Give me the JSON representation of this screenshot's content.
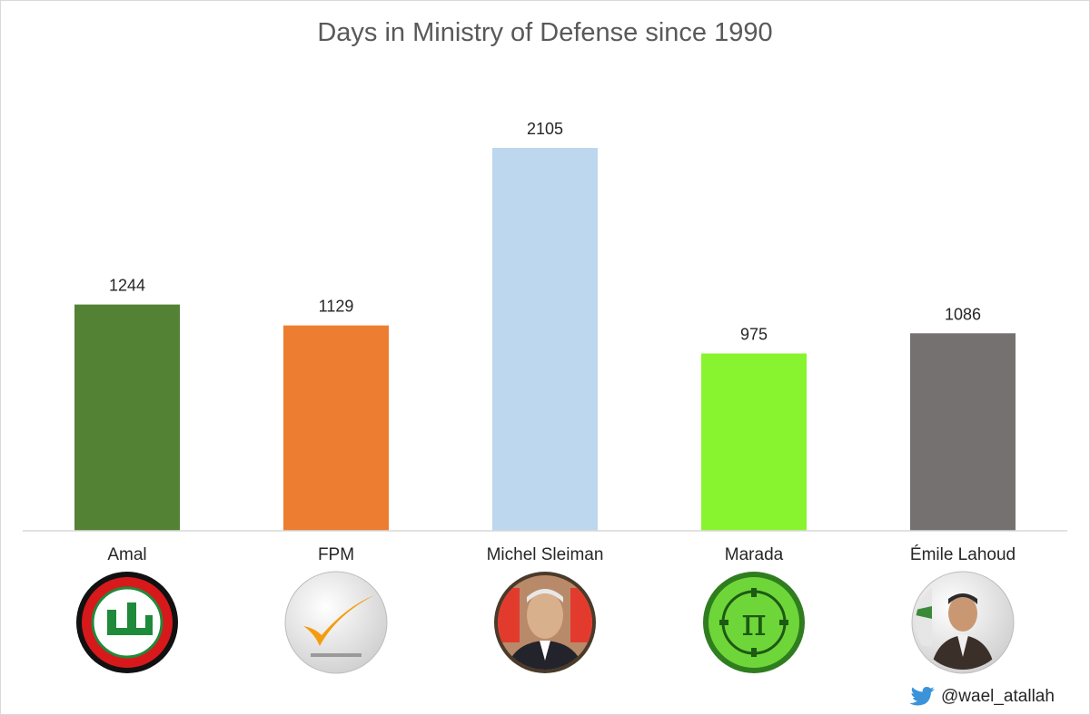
{
  "chart_data": {
    "type": "bar",
    "title": "Days in Ministry of Defense since 1990",
    "categories": [
      "Amal",
      "FPM",
      "Michel Sleiman",
      "Marada",
      "Émile Lahoud"
    ],
    "values": [
      1244,
      1129,
      2105,
      975,
      1086
    ],
    "colors": [
      "#548235",
      "#ed7d31",
      "#bdd7ee",
      "#88f42f",
      "#767171"
    ],
    "xlabel": "",
    "ylabel": "",
    "ylim": [
      0,
      2105
    ],
    "grid": false,
    "legend": "none"
  },
  "logos": [
    {
      "name": "amal-logo-icon"
    },
    {
      "name": "fpm-logo-icon"
    },
    {
      "name": "michel-sleiman-portrait-icon"
    },
    {
      "name": "marada-logo-icon"
    },
    {
      "name": "emile-lahoud-portrait-icon"
    }
  ],
  "credit": {
    "icon": "twitter-bird-icon",
    "handle": "@wael_atallah"
  }
}
